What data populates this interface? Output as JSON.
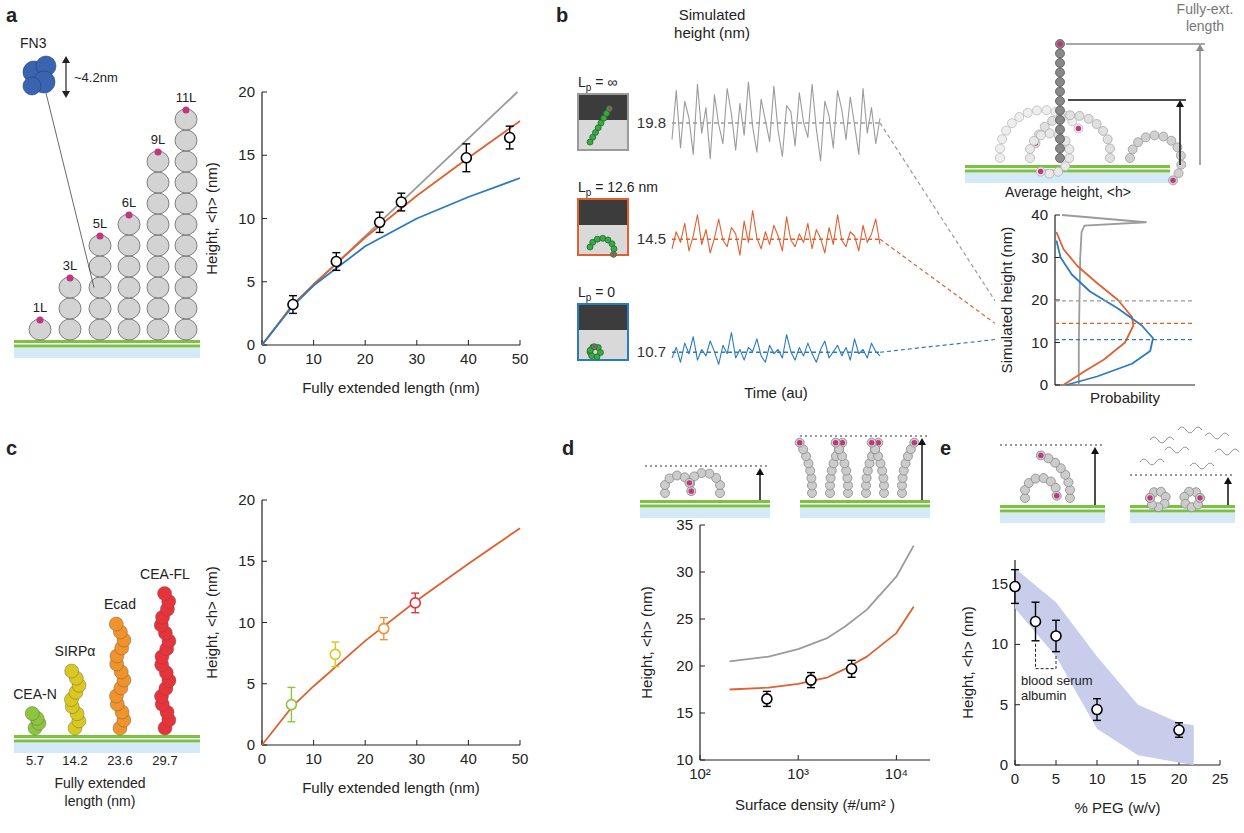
{
  "chart_data": [
    {
      "panel": "a",
      "type": "scatter",
      "xlabel": "Fully extended length (nm)",
      "ylabel": "Height, <h> (nm)",
      "xlim": [
        0,
        50
      ],
      "xticks": [
        0,
        10,
        20,
        30,
        40,
        50
      ],
      "ylim": [
        0,
        20
      ],
      "yticks": [
        0,
        5,
        10,
        15,
        20
      ],
      "annotations": {
        "domain": "FN3",
        "size": "~4.2nm",
        "constructs": [
          "1L",
          "3L",
          "5L",
          "6L",
          "9L",
          "11L"
        ]
      },
      "series": [
        {
          "type": "line",
          "color": "#9b9b9b",
          "x": [
            0,
            6,
            49.5
          ],
          "values": [
            0,
            3.2,
            20
          ]
        },
        {
          "type": "line",
          "color": "#e0602f",
          "x": [
            0,
            6,
            10,
            20,
            30,
            40,
            50
          ],
          "values": [
            0,
            3.2,
            4.8,
            8.5,
            11.8,
            14.8,
            17.7
          ]
        },
        {
          "type": "line",
          "color": "#2b7bbf",
          "x": [
            0,
            6,
            10,
            20,
            30,
            40,
            50
          ],
          "values": [
            0,
            3.1,
            4.7,
            7.8,
            10,
            11.7,
            13.2
          ]
        },
        {
          "type": "scatter",
          "color": "#000000",
          "marker": "open-circle",
          "x": [
            6,
            14.4,
            22.8,
            27,
            39.6,
            48
          ],
          "values": [
            3.2,
            6.6,
            9.7,
            11.3,
            14.8,
            16.4
          ],
          "errors": [
            0.7,
            0.7,
            0.8,
            0.7,
            1.1,
            0.9
          ]
        }
      ]
    },
    {
      "panel": "b",
      "type": "line",
      "title": "Simulated height (nm)",
      "xlabel": "Time (au)",
      "tick_labels": false,
      "ylim": [
        0,
        40
      ],
      "annotations": {
        "full_length": "Fully-ext. length",
        "average": "Average height, <h>"
      },
      "series": [
        {
          "name": "Lp = ∞",
          "color": "#9b9b9b",
          "mean": 19.8,
          "values": [
            12,
            35,
            8,
            30,
            22,
            5,
            38,
            15,
            27,
            3,
            33,
            19,
            10,
            36,
            24,
            7,
            29,
            14,
            39,
            18,
            6,
            31,
            21,
            11,
            37,
            16,
            4,
            28,
            25,
            9,
            34,
            20,
            13,
            38,
            17,
            2,
            30,
            23,
            8,
            35,
            26,
            12,
            32,
            19,
            5,
            36,
            15,
            27,
            10,
            22
          ]
        },
        {
          "name": "Lp = 12.6 nm",
          "color": "#e0602f",
          "mean": 14.5,
          "values": [
            10,
            18,
            13,
            22,
            9,
            16,
            26,
            12,
            19,
            8,
            15,
            24,
            14,
            11,
            20,
            17,
            7,
            23,
            13,
            28,
            15,
            10,
            18,
            12,
            21,
            16,
            9,
            25,
            14,
            11,
            17,
            13,
            22,
            10,
            19,
            15,
            8,
            20,
            12,
            26,
            14,
            11,
            18,
            16,
            9,
            21,
            13,
            17,
            24,
            12
          ]
        },
        {
          "name": "Lp = 0",
          "color": "#2b7bbf",
          "mean": 10.7,
          "values": [
            8,
            13,
            6,
            15,
            10,
            18,
            7,
            12,
            9,
            16,
            11,
            5,
            14,
            10,
            20,
            8,
            12,
            7,
            13,
            11,
            17,
            9,
            6,
            14,
            10,
            12,
            8,
            19,
            11,
            7,
            13,
            9,
            15,
            10,
            6,
            12,
            16,
            8,
            11,
            14,
            9,
            13,
            7,
            17,
            10,
            12,
            8,
            15,
            11,
            9
          ]
        }
      ]
    },
    {
      "type": "line",
      "xlabel": "Probability",
      "ylabel": "Simulated height (nm)",
      "xlim": [
        0,
        1
      ],
      "ylim": [
        0,
        40
      ],
      "yticks": [
        0,
        10,
        20,
        30,
        40
      ],
      "tick_labels": "y",
      "series": [
        {
          "color": "#9b9b9b",
          "x": [
            0.17,
            0.17,
            0.175,
            0.18,
            0.19,
            0.21,
            0.65,
            0.05
          ],
          "values": [
            0,
            10,
            20,
            30,
            36,
            37.5,
            38.3,
            40
          ]
        },
        {
          "color": "#e0602f",
          "x": [
            0.06,
            0.2,
            0.35,
            0.5,
            0.56,
            0.55,
            0.45,
            0.3,
            0.16,
            0.06,
            0.01
          ],
          "values": [
            0,
            3,
            6,
            10,
            14,
            16,
            20,
            24,
            28,
            32,
            36
          ]
        },
        {
          "color": "#2b7bbf",
          "x": [
            0.08,
            0.3,
            0.55,
            0.68,
            0.7,
            0.62,
            0.45,
            0.25,
            0.12,
            0.04,
            0.01
          ],
          "values": [
            0,
            2,
            5,
            8,
            11,
            14,
            18,
            22,
            26,
            30,
            34
          ]
        }
      ]
    },
    {
      "panel": "c",
      "type": "scatter",
      "xlabel": "Fully extended length (nm)",
      "ylabel": "Height, <h> (nm)",
      "xlim": [
        0,
        50
      ],
      "xticks": [
        0,
        10,
        20,
        30,
        40,
        50
      ],
      "ylim": [
        0,
        20
      ],
      "yticks": [
        0,
        5,
        10,
        15,
        20
      ],
      "annotations": {
        "length_axis": "Fully extended length (nm)"
      },
      "series": [
        {
          "type": "line",
          "color": "#e0602f",
          "x": [
            0,
            6,
            10,
            20,
            30,
            40,
            50
          ],
          "values": [
            0,
            3.2,
            4.8,
            8.5,
            11.8,
            14.8,
            17.7
          ]
        },
        {
          "type": "scatter",
          "marker": "open-circle",
          "labels": [
            "CEA-N",
            "SIRPα",
            "Ecad",
            "CEA-FL"
          ],
          "colors": [
            "#8cc63f",
            "#d9c821",
            "#f0932b",
            "#e8333a"
          ],
          "x": [
            5.7,
            14.2,
            23.6,
            29.7
          ],
          "values": [
            3.3,
            7.4,
            9.5,
            11.6
          ],
          "errors": [
            1.4,
            1.0,
            0.9,
            0.8
          ]
        }
      ]
    },
    {
      "panel": "d",
      "type": "scatter",
      "log": "x",
      "xlabel": "Surface density (#/um² )",
      "ylabel": "Height, <h> (nm)",
      "xlim": [
        100,
        22000
      ],
      "xticks": [
        {
          "value": 100,
          "label": "10²"
        },
        {
          "value": 1000,
          "label": "10³"
        },
        {
          "value": 10000,
          "label": "10⁴"
        }
      ],
      "ylim": [
        10,
        35
      ],
      "yticks": [
        10,
        15,
        20,
        25,
        30,
        35
      ],
      "series": [
        {
          "type": "line",
          "color": "#9b9b9b",
          "x": [
            200,
            500,
            1000,
            2000,
            3000,
            5000,
            10000,
            15000
          ],
          "values": [
            20.5,
            21,
            21.8,
            23,
            24.2,
            26,
            29.5,
            32.8
          ]
        },
        {
          "type": "line",
          "color": "#e0602f",
          "x": [
            200,
            500,
            1000,
            2000,
            3000,
            5000,
            10000,
            15000
          ],
          "values": [
            17.5,
            17.7,
            18.1,
            18.8,
            19.7,
            21,
            23.5,
            26.3
          ]
        },
        {
          "type": "scatter",
          "color": "#000000",
          "marker": "open-circle",
          "x": [
            480,
            1350,
            3500
          ],
          "values": [
            16.5,
            18.5,
            19.7
          ],
          "errors": [
            0.8,
            0.8,
            0.9
          ]
        }
      ]
    },
    {
      "panel": "e",
      "type": "scatter",
      "xlabel": "% PEG (w/v)",
      "ylabel": "Height, <h> (nm)",
      "xlim": [
        0,
        25
      ],
      "xticks": [
        0,
        5,
        10,
        15,
        20,
        25
      ],
      "ylim": [
        0,
        17
      ],
      "yticks": [
        0,
        5,
        10,
        15
      ],
      "band": {
        "color": "#c8cdeb",
        "x": [
          0,
          5,
          10,
          15,
          20,
          21.8
        ],
        "lower": [
          13,
          9,
          3,
          0.8,
          0.2,
          0
        ],
        "upper": [
          16.3,
          13.5,
          9,
          5,
          3.5,
          3.3
        ]
      },
      "annotations": [
        {
          "text": "blood serum albumin",
          "range": [
            2.5,
            5
          ]
        }
      ],
      "series": [
        {
          "type": "scatter",
          "color": "#000000",
          "marker": "open-circle",
          "x": [
            0,
            2.5,
            5,
            10,
            20
          ],
          "values": [
            14.8,
            11.9,
            10.7,
            4.6,
            2.9
          ],
          "errors": [
            1.4,
            1.6,
            1.3,
            0.9,
            0.6
          ]
        }
      ]
    }
  ]
}
